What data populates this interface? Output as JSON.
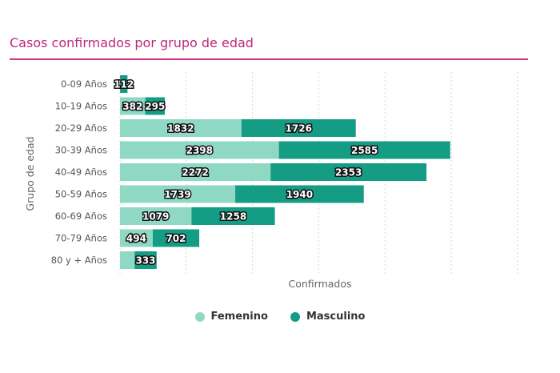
{
  "colors": {
    "title": "#c0267a",
    "femenino": "#8fd8c4",
    "masculino": "#149c84",
    "grid": "#d6d6d6"
  },
  "chart_data": {
    "type": "bar",
    "orientation": "horizontal",
    "stacked": true,
    "title": "Casos confirmados por grupo de edad",
    "xlabel": "Confirmados",
    "ylabel": "Grupo de edad",
    "categories": [
      "0-09 Años",
      "10-19 Años",
      "20-29 Años",
      "30-39 Años",
      "40-49 Años",
      "50-59 Años",
      "60-69 Años",
      "70-79 Años",
      "80 y + Años"
    ],
    "series": [
      {
        "name": "Femenino",
        "values": [
          1,
          382,
          1832,
          2398,
          2272,
          1739,
          1079,
          494,
          220
        ]
      },
      {
        "name": "Masculino",
        "values": [
          112,
          295,
          1726,
          2585,
          2353,
          1940,
          1258,
          702,
          333
        ]
      }
    ],
    "data_labels": [
      [
        "1",
        "382",
        "1832",
        "2398",
        "2272",
        "1739",
        "1079",
        "494",
        ""
      ],
      [
        "112",
        "295",
        "1726",
        "2585",
        "2353",
        "1940",
        "1258",
        "702",
        "333"
      ]
    ],
    "xlim": [
      0,
      6000
    ],
    "grid": true,
    "legend_position": "bottom-center"
  }
}
